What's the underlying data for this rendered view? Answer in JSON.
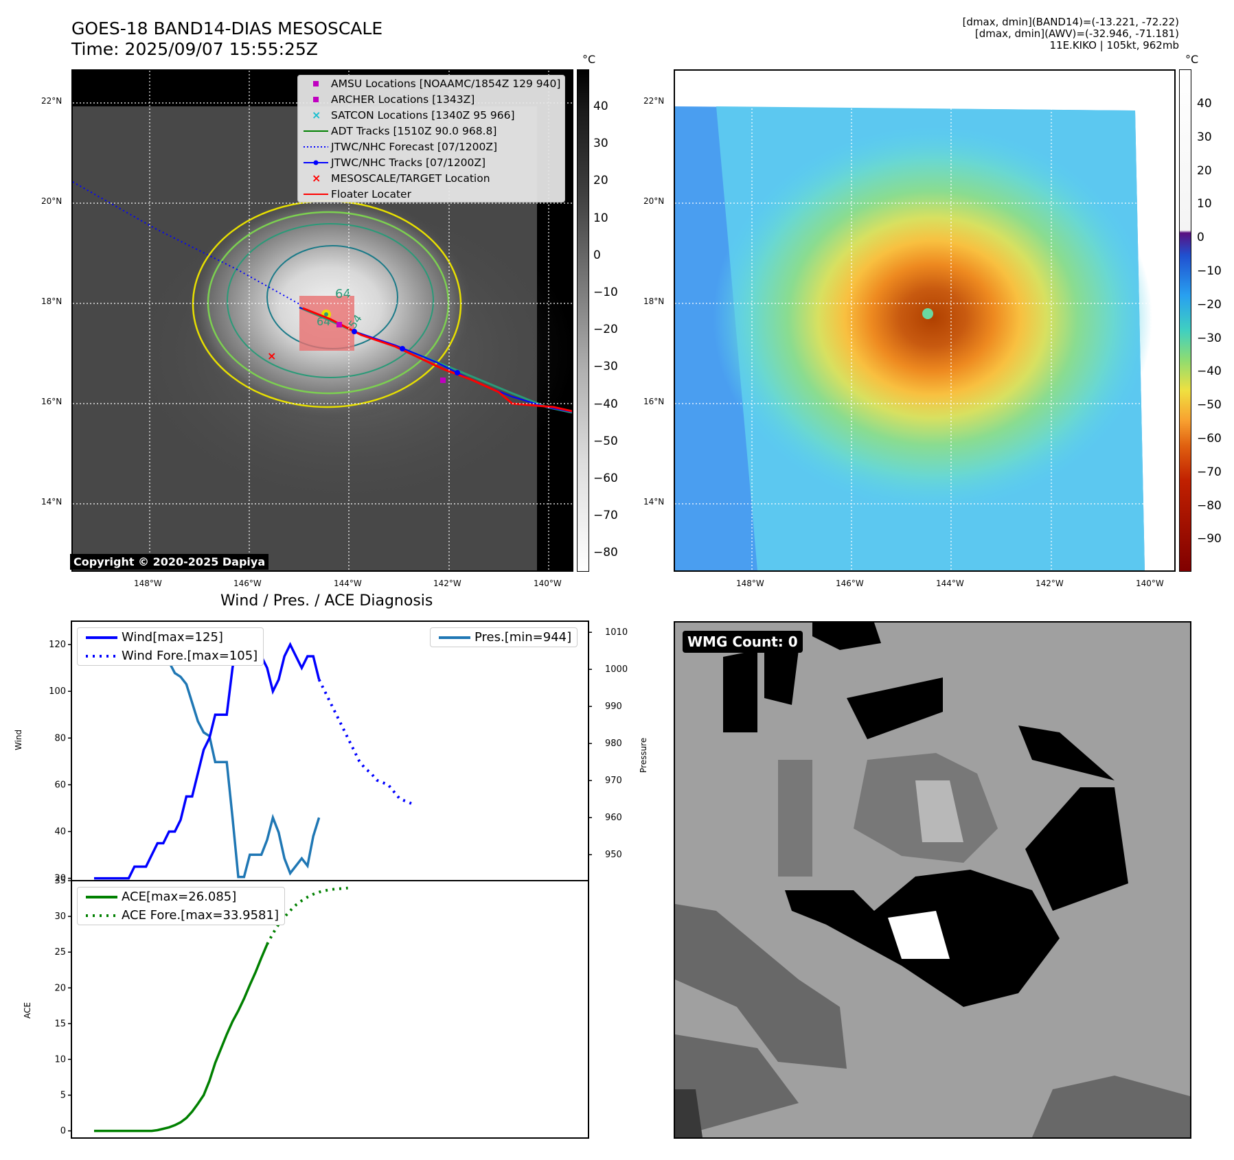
{
  "header": {
    "title_line1": "GOES-18 BAND14-DIAS MESOSCALE",
    "title_line2": "Time: 2025/09/07 15:55:25Z",
    "info_line1": "[dmax, dmin](BAND14)=(-13.221, -72.22)",
    "info_line2": "[dmax, dmin](AWV)=(-32.946, -71.181)",
    "info_line3": "11E.KIKO | 105kt, 962mb"
  },
  "map": {
    "lat_labels": [
      "22°N",
      "20°N",
      "18°N",
      "16°N",
      "14°N"
    ],
    "lon_labels": [
      "148°W",
      "146°W",
      "144°W",
      "142°W",
      "140°W"
    ],
    "copyright": "Copyright © 2020-2025 Dapiya",
    "contour_labels": [
      "64",
      "64",
      "54"
    ],
    "legend": [
      {
        "label": "AMSU Locations [NOAAMC/1854Z 129 940]",
        "symbol": "square",
        "color": "#c000c0"
      },
      {
        "label": "ARCHER Locations [1343Z]",
        "symbol": "square",
        "color": "#c000c0"
      },
      {
        "label": "SATCON Locations [1340Z 95 966]",
        "symbol": "x",
        "color": "#17becf"
      },
      {
        "label": "ADT Tracks [1510Z 90.0 968.8]",
        "symbol": "line",
        "color": "#008000"
      },
      {
        "label": "JTWC/NHC Forecast [07/1200Z]",
        "symbol": "dotted",
        "color": "#0000ff"
      },
      {
        "label": "JTWC/NHC Tracks [07/1200Z]",
        "symbol": "line-dot",
        "color": "#0000ff"
      },
      {
        "label": "MESOSCALE/TARGET Location",
        "symbol": "x",
        "color": "#ff0000"
      },
      {
        "label": "Floater Locater",
        "symbol": "line",
        "color": "#ff0000"
      }
    ]
  },
  "colorbar_left": {
    "unit": "°C",
    "ticks": [
      "40",
      "30",
      "20",
      "10",
      "0",
      "−10",
      "−20",
      "−30",
      "−40",
      "−50",
      "−60",
      "−70",
      "−80"
    ]
  },
  "colorbar_right": {
    "unit": "°C",
    "ticks": [
      "40",
      "30",
      "20",
      "10",
      "0",
      "−10",
      "−20",
      "−30",
      "−40",
      "−50",
      "−60",
      "−70",
      "−80",
      "−90"
    ]
  },
  "wmg": {
    "label": "WMG Count: 0"
  },
  "chart_data": [
    {
      "type": "line",
      "title": "Wind / Pres. / ACE Diagnosis",
      "ylabel": "Wind",
      "y2label": "Pressure",
      "ylim": [
        19,
        130
      ],
      "y2lim": [
        943,
        1013
      ],
      "yticks": [
        "20",
        "40",
        "60",
        "80",
        "100",
        "120"
      ],
      "y2ticks": [
        "950",
        "960",
        "970",
        "980",
        "990",
        "1000",
        "1010"
      ],
      "series": [
        {
          "name": "Wind[max=125]",
          "style": "solid",
          "color": "#0000ff",
          "values": [
            20,
            20,
            20,
            20,
            20,
            20,
            20,
            25,
            25,
            25,
            30,
            35,
            35,
            40,
            40,
            45,
            55,
            55,
            65,
            75,
            80,
            90,
            90,
            90,
            110,
            125,
            125,
            115,
            115,
            115,
            110,
            100,
            105,
            115,
            120,
            115,
            110,
            115,
            115,
            105
          ]
        },
        {
          "name": "Wind Fore.[max=105]",
          "style": "dotted",
          "color": "#0000ff",
          "values": [
            105,
            100,
            95,
            90,
            85,
            80,
            75,
            70,
            67,
            65,
            62,
            61,
            60,
            57,
            54,
            53,
            52
          ]
        },
        {
          "name": "Pres.[min=944]",
          "style": "solid",
          "color": "#1f77b4",
          "axis": "right",
          "values": [
            1010,
            1010,
            1010,
            1010,
            1010,
            1010,
            1010,
            1010,
            1009,
            1009,
            1008,
            1006,
            1004,
            1002,
            999,
            998,
            996,
            991,
            986,
            983,
            982,
            975,
            975,
            975,
            960,
            944,
            944,
            950,
            950,
            950,
            954,
            960,
            956,
            949,
            945,
            947,
            949,
            947,
            955,
            960
          ]
        }
      ]
    },
    {
      "type": "line",
      "ylabel": "ACE",
      "ylim": [
        -1,
        35
      ],
      "yticks": [
        "0",
        "5",
        "10",
        "15",
        "20",
        "25",
        "30",
        "35"
      ],
      "series": [
        {
          "name": "ACE[max=26.085]",
          "style": "solid",
          "color": "#008000",
          "values": [
            0,
            0,
            0,
            0,
            0,
            0,
            0,
            0,
            0,
            0,
            0,
            0.1,
            0.3,
            0.5,
            0.8,
            1.2,
            1.8,
            2.7,
            3.8,
            5,
            7,
            9.5,
            11.5,
            13.5,
            15.3,
            16.8,
            18.5,
            20.4,
            22.2,
            24.2,
            26.1
          ]
        },
        {
          "name": "ACE Fore.[max=33.9581]",
          "style": "dotted",
          "color": "#008000",
          "values": [
            26.1,
            27.6,
            28.9,
            29.9,
            30.8,
            31.6,
            32.2,
            32.7,
            33.1,
            33.4,
            33.6,
            33.75,
            33.85,
            33.9,
            33.96
          ]
        }
      ]
    }
  ]
}
